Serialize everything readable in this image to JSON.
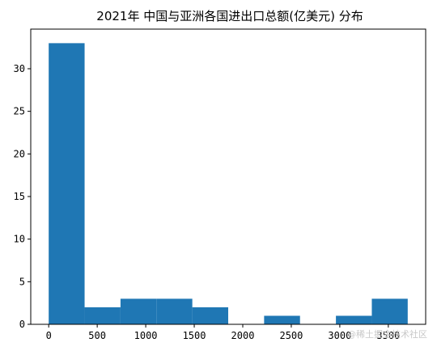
{
  "chart_data": {
    "type": "bar",
    "title": "2021年 中国与亚洲各国进出口总额(亿美元) 分布",
    "xlabel": "",
    "ylabel": "",
    "bin_edges": [
      0,
      370,
      740,
      1110,
      1480,
      1850,
      2220,
      2590,
      2960,
      3330,
      3700
    ],
    "values": [
      33,
      2,
      3,
      3,
      2,
      0,
      1,
      0,
      1,
      3
    ],
    "xlim": [
      -185,
      3885
    ],
    "ylim": [
      0,
      34.65
    ],
    "xticks": [
      0,
      500,
      1000,
      1500,
      2000,
      2500,
      3000,
      3500
    ],
    "yticks": [
      0,
      5,
      10,
      15,
      20,
      25,
      30
    ],
    "bar_color": "#1f77b4",
    "grid": false,
    "legend": "none"
  },
  "watermark": "@稀土掘金技术社区"
}
